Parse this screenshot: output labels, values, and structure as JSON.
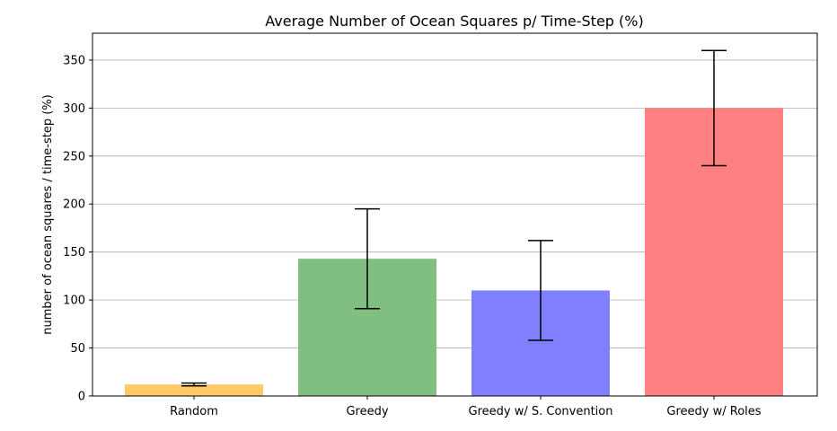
{
  "chart_data": {
    "type": "bar",
    "title": "Average Number of Ocean Squares p/ Time-Step (%)",
    "xlabel": "",
    "ylabel": "number of ocean squares / time-step (%)",
    "ylim": [
      0,
      378
    ],
    "yticks": [
      0,
      50,
      100,
      150,
      200,
      250,
      300,
      350
    ],
    "grid": "y",
    "categories": [
      "Random",
      "Greedy",
      "Greedy w/ S. Convention",
      "Greedy w/ Roles"
    ],
    "values": [
      12,
      143,
      110,
      300
    ],
    "errors": [
      1.5,
      52,
      52,
      60
    ],
    "colors": [
      "#ffc966",
      "#80bf80",
      "#8080ff",
      "#ff8080"
    ]
  }
}
